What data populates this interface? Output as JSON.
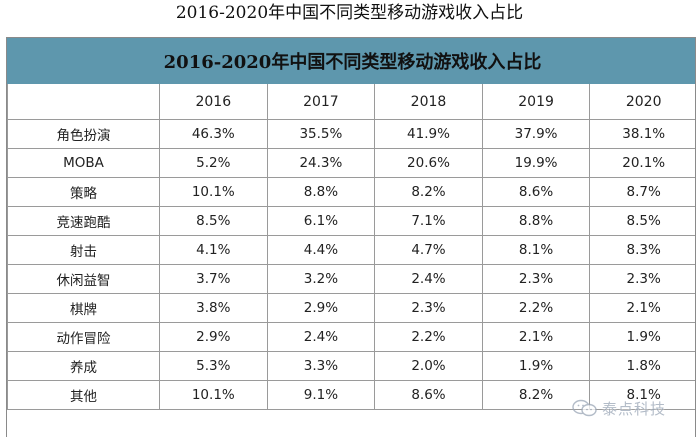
{
  "page_title": "2016-2020年中国不同类型移动游戏收入占比",
  "watermark": {
    "text": "泰点科技",
    "icon": "wechat-icon"
  },
  "chart_data": {
    "type": "table",
    "title": "2016-2020年中国不同类型移动游戏收入占比",
    "columns": [
      "",
      "2016",
      "2017",
      "2018",
      "2019",
      "2020"
    ],
    "rows": [
      [
        "角色扮演",
        "46.3%",
        "35.5%",
        "41.9%",
        "37.9%",
        "38.1%"
      ],
      [
        "MOBA",
        "5.2%",
        "24.3%",
        "20.6%",
        "19.9%",
        "20.1%"
      ],
      [
        "策略",
        "10.1%",
        "8.8%",
        "8.2%",
        "8.6%",
        "8.7%"
      ],
      [
        "竞速跑酷",
        "8.5%",
        "6.1%",
        "7.1%",
        "8.8%",
        "8.5%"
      ],
      [
        "射击",
        "4.1%",
        "4.4%",
        "4.7%",
        "8.1%",
        "8.3%"
      ],
      [
        "休闲益智",
        "3.7%",
        "3.2%",
        "2.4%",
        "2.3%",
        "2.3%"
      ],
      [
        "棋牌",
        "3.8%",
        "2.9%",
        "2.3%",
        "2.2%",
        "2.1%"
      ],
      [
        "动作冒险",
        "2.9%",
        "2.4%",
        "2.2%",
        "2.1%",
        "1.9%"
      ],
      [
        "养成",
        "5.3%",
        "3.3%",
        "2.0%",
        "1.9%",
        "1.8%"
      ],
      [
        "其他",
        "10.1%",
        "9.1%",
        "8.6%",
        "8.2%",
        "8.1%"
      ]
    ],
    "header_color": "#5e97ad"
  }
}
